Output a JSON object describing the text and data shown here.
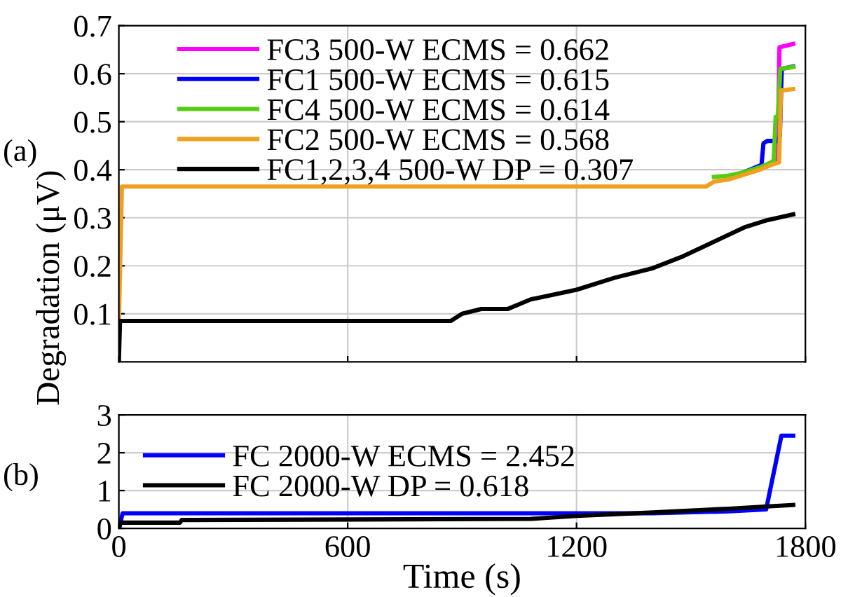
{
  "chart_data": [
    {
      "type": "line",
      "ylabel": "Degradation (μV)",
      "annotations": [
        "(a)"
      ],
      "xlim": [
        0,
        1800
      ],
      "xticks": [
        0,
        600,
        1200,
        1800
      ],
      "ylim": [
        0,
        0.7
      ],
      "yticks": [
        0.1,
        0.2,
        0.3,
        0.4,
        0.5,
        0.6,
        0.7
      ],
      "tick_labels": "y",
      "grid": true,
      "legend": "top left",
      "line_style": "solid",
      "series": [
        {
          "name": "FC3 500-W ECMS = 0.662",
          "color": "#ff00ff",
          "x": [
            1710,
            1727,
            1732,
            1768
          ],
          "values": [
            0.415,
            0.42,
            0.655,
            0.662
          ]
        },
        {
          "name": "FC1 500-W ECMS = 0.615",
          "color": "#0000ff",
          "x": [
            1640,
            1685,
            1690,
            1700,
            1728,
            1733,
            1738,
            1768
          ],
          "values": [
            0.395,
            0.41,
            0.455,
            0.46,
            0.46,
            0.47,
            0.61,
            0.615
          ]
        },
        {
          "name": "FC4 500-W ECMS = 0.614",
          "color": "#55cc11",
          "x": [
            1560,
            1600,
            1640,
            1680,
            1710,
            1717,
            1722,
            1728,
            1734,
            1768
          ],
          "values": [
            0.385,
            0.388,
            0.395,
            0.405,
            0.415,
            0.42,
            0.51,
            0.51,
            0.61,
            0.614
          ]
        },
        {
          "name": "FC2 500-W ECMS = 0.568",
          "color": "#f0a020",
          "x": [
            0,
            8,
            1540,
            1560,
            1600,
            1640,
            1680,
            1710,
            1731,
            1736,
            1768
          ],
          "values": [
            0.08,
            0.365,
            0.365,
            0.375,
            0.38,
            0.39,
            0.4,
            0.41,
            0.415,
            0.565,
            0.568
          ]
        },
        {
          "name": "FC1,2,3,4 500-W DP = 0.307",
          "color": "#000000",
          "x": [
            0,
            3,
            870,
            900,
            950,
            1020,
            1080,
            1200,
            1300,
            1400,
            1480,
            1560,
            1640,
            1700,
            1768
          ],
          "values": [
            0,
            0.085,
            0.085,
            0.1,
            0.11,
            0.11,
            0.13,
            0.15,
            0.175,
            0.195,
            0.22,
            0.25,
            0.28,
            0.295,
            0.307
          ]
        }
      ]
    },
    {
      "type": "line",
      "xlabel": "Time (s)",
      "annotations": [
        "(b)"
      ],
      "xlim": [
        0,
        1800
      ],
      "xticks": [
        0,
        600,
        1200,
        1800
      ],
      "ylim": [
        0,
        3
      ],
      "yticks": [
        0,
        1,
        2,
        3
      ],
      "grid": true,
      "legend": "top left",
      "line_style": "solid",
      "series": [
        {
          "name": "FC 2000-W ECMS = 2.452",
          "color": "#0000ff",
          "x": [
            0,
            10,
            1400,
            1600,
            1697,
            1737,
            1768
          ],
          "values": [
            0,
            0.4,
            0.4,
            0.45,
            0.5,
            2.45,
            2.452
          ]
        },
        {
          "name": "FC 2000-W DP = 0.618",
          "color": "#000000",
          "x": [
            0,
            5,
            160,
            165,
            1080,
            1200,
            1400,
            1600,
            1700,
            1768
          ],
          "values": [
            0,
            0.15,
            0.15,
            0.22,
            0.25,
            0.33,
            0.42,
            0.52,
            0.58,
            0.618
          ]
        }
      ]
    }
  ]
}
